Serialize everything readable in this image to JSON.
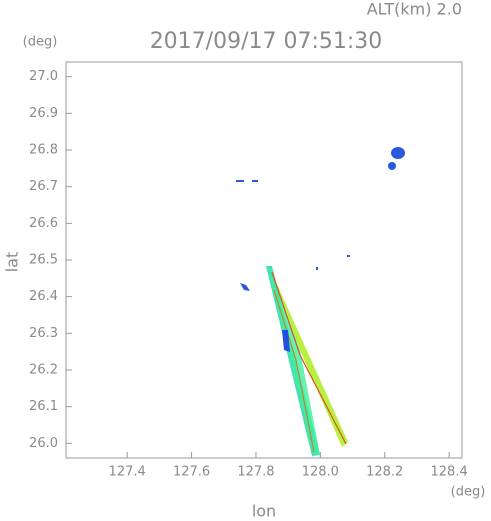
{
  "chart_data": {
    "type": "map",
    "title": "2017/09/17 07:51:30",
    "subtitle": "ALT(km) 2.0",
    "y_unit": "(deg)",
    "x_unit": "(deg)",
    "x_label": "lon",
    "y_label": "lat",
    "xlim": [
      127.21,
      128.44
    ],
    "ylim": [
      25.96,
      27.04
    ],
    "xticks": [
      127.4,
      127.6,
      127.8,
      {
        "value": 128,
        "label": "128.0"
      },
      128.2,
      128.4
    ],
    "yticks": [
      {
        "value": 26,
        "label": "26.0"
      },
      26.1,
      26.2,
      26.3,
      26.4,
      26.5,
      26.6,
      26.7,
      26.8,
      26.9,
      {
        "value": 27,
        "label": "27.0"
      }
    ]
  }
}
